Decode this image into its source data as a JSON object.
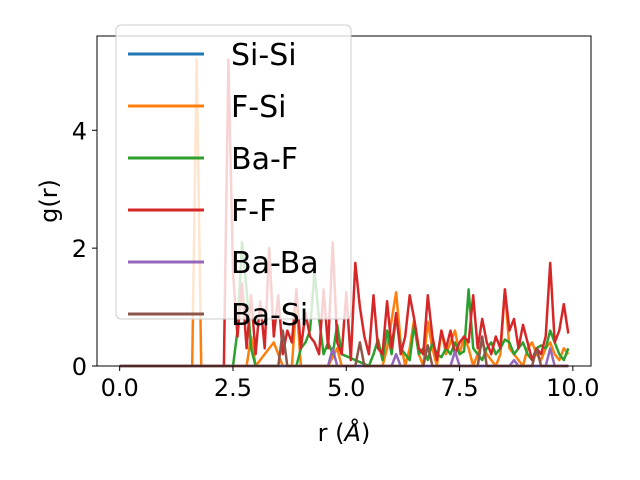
{
  "chart_data": {
    "type": "line",
    "xlabel": "r (",
    "xlabel_unit": "Å",
    "xlabel_close": ")",
    "ylabel": "g(r)",
    "xlim": [
      -0.5,
      10.4
    ],
    "ylim": [
      0,
      5.6
    ],
    "xticks": [
      0.0,
      2.5,
      5.0,
      7.5,
      10.0
    ],
    "xtick_labels": [
      "0.0",
      "2.5",
      "5.0",
      "7.5",
      "10.0"
    ],
    "yticks": [
      0,
      2,
      4
    ],
    "ytick_labels": [
      "0",
      "2",
      "4"
    ],
    "grid": false,
    "legend_position": "upper-left",
    "series": [
      {
        "name": "Si-Si",
        "color": "#1f77b4",
        "x": [
          0.0,
          5.0,
          9.9
        ],
        "y": [
          0,
          0,
          0
        ]
      },
      {
        "name": "F-Si",
        "color": "#ff7f0e",
        "x": [
          0.0,
          1.6,
          1.7,
          1.8,
          2.8,
          2.9,
          3.0,
          3.4,
          3.6,
          3.8,
          3.9,
          4.0,
          4.6,
          4.8,
          4.9,
          5.0,
          5.8,
          5.9,
          6.1,
          6.2,
          6.3,
          6.4,
          6.5,
          6.6,
          6.7,
          6.8,
          6.9,
          7.0,
          7.1,
          7.2,
          7.3,
          7.4,
          7.5,
          7.6,
          7.7,
          7.8,
          7.9,
          8.0,
          8.1,
          8.2,
          8.3,
          8.4,
          8.5,
          8.6,
          8.7,
          8.8,
          8.9,
          9.0,
          9.1,
          9.2,
          9.3,
          9.4,
          9.5,
          9.6,
          9.7,
          9.8,
          9.9
        ],
        "y": [
          0,
          0,
          5.2,
          0,
          0,
          0.5,
          0,
          0.4,
          0,
          0,
          1.1,
          0,
          0,
          0.3,
          0,
          0,
          0,
          0.3,
          1.25,
          0.4,
          0,
          0.3,
          0.8,
          0.2,
          0,
          0.75,
          0.3,
          0,
          0.6,
          0.2,
          0.4,
          0.6,
          0.2,
          0.5,
          0.3,
          0,
          0.2,
          0.4,
          0.2,
          0.1,
          0,
          0.2,
          1.3,
          0.3,
          0.2,
          0.1,
          0,
          0.3,
          0.4,
          0.2,
          0.1,
          0.3,
          0.4,
          0.2,
          0.1,
          0.3,
          0.2
        ]
      },
      {
        "name": "Ba-F",
        "color": "#2ca02c",
        "x": [
          0.0,
          2.5,
          2.6,
          2.7,
          2.8,
          2.9,
          3.0,
          3.9,
          4.0,
          4.1,
          4.2,
          4.3,
          4.4,
          4.5,
          4.6,
          4.7,
          4.8,
          4.9,
          5.5,
          5.6,
          5.7,
          5.8,
          5.9,
          6.0,
          6.1,
          6.2,
          6.3,
          6.4,
          6.5,
          6.6,
          6.7,
          6.8,
          6.9,
          7.0,
          7.1,
          7.2,
          7.3,
          7.4,
          7.5,
          7.6,
          7.7,
          7.8,
          7.9,
          8.0,
          8.1,
          8.2,
          8.3,
          8.4,
          8.5,
          8.6,
          8.7,
          8.8,
          8.9,
          9.0,
          9.1,
          9.2,
          9.3,
          9.4,
          9.5,
          9.6,
          9.7,
          9.8,
          9.9
        ],
        "y": [
          0,
          0,
          0.6,
          2.1,
          1.3,
          0.3,
          0,
          0,
          0.3,
          0.4,
          0.6,
          1.6,
          0.8,
          0.2,
          0.4,
          0.2,
          0.7,
          0.2,
          0,
          0.2,
          0.45,
          0.1,
          0.6,
          0.2,
          0.85,
          0.3,
          0.2,
          0.1,
          0.7,
          0.2,
          0.3,
          0.1,
          0.4,
          0.2,
          0.15,
          0.3,
          0.2,
          0.4,
          0.2,
          0.25,
          1.3,
          0.3,
          0.2,
          0.1,
          0.3,
          0.4,
          0.2,
          0.3,
          0.45,
          0.4,
          0.2,
          0.3,
          0.4,
          0.2,
          0.1,
          0.3,
          0.35,
          0.3,
          0.6,
          0.4,
          0.2,
          0.1,
          0.3
        ]
      },
      {
        "name": "F-F",
        "color": "#d62728",
        "x": [
          0.0,
          2.3,
          2.4,
          2.5,
          2.6,
          2.7,
          2.8,
          2.9,
          3.0,
          3.1,
          3.2,
          3.3,
          3.4,
          3.5,
          3.6,
          3.7,
          3.8,
          3.9,
          4.0,
          4.1,
          4.2,
          4.3,
          4.4,
          4.5,
          4.6,
          4.7,
          4.8,
          4.9,
          5.0,
          5.1,
          5.2,
          5.3,
          5.4,
          5.5,
          5.6,
          5.7,
          5.8,
          5.9,
          6.0,
          6.1,
          6.2,
          6.3,
          6.4,
          6.5,
          6.6,
          6.7,
          6.8,
          6.9,
          7.0,
          7.1,
          7.2,
          7.3,
          7.4,
          7.5,
          7.6,
          7.7,
          7.8,
          7.9,
          8.0,
          8.1,
          8.2,
          8.3,
          8.4,
          8.5,
          8.6,
          8.7,
          8.8,
          8.9,
          9.0,
          9.1,
          9.2,
          9.3,
          9.4,
          9.5,
          9.6,
          9.7,
          9.8,
          9.9
        ],
        "y": [
          0,
          0,
          5.2,
          1.6,
          0.5,
          1.4,
          0.3,
          1.2,
          0.2,
          1.1,
          0.3,
          2.0,
          0.5,
          1.2,
          0.2,
          0.6,
          0.4,
          1.3,
          0.3,
          0.9,
          0.5,
          0.4,
          0.2,
          1.3,
          0.3,
          2.1,
          0.4,
          0.2,
          1.25,
          0.1,
          1.75,
          1.0,
          0.5,
          0.2,
          1.2,
          0.3,
          0.2,
          1.1,
          0.3,
          0.9,
          0.2,
          0.5,
          1.2,
          0.8,
          0.3,
          0.2,
          1.2,
          0.5,
          0.1,
          0.6,
          0.3,
          0.6,
          0.2,
          0.4,
          0.5,
          0.4,
          1.2,
          0.3,
          0.8,
          0.4,
          0.2,
          0.5,
          0.3,
          1.3,
          0.6,
          0.8,
          0.3,
          0.7,
          0.4,
          0.1,
          0.3,
          0.2,
          0.5,
          1.75,
          0.4,
          0.6,
          1.05,
          0.55
        ]
      },
      {
        "name": "Ba-Ba",
        "color": "#9467bd",
        "x": [
          0.0,
          4.6,
          4.7,
          4.8,
          6.0,
          6.1,
          6.2,
          7.3,
          7.4,
          7.5,
          8.6,
          8.7,
          8.8,
          9.4,
          9.5,
          9.6,
          9.9
        ],
        "y": [
          0,
          0,
          0.3,
          0,
          0,
          0.2,
          0,
          0,
          0.25,
          0,
          0,
          0.1,
          0,
          0,
          0.3,
          0,
          0
        ]
      },
      {
        "name": "Ba-Si",
        "color": "#8c564b",
        "x": [
          0.0,
          3.5,
          3.6,
          3.7,
          5.2,
          5.3,
          5.4,
          6.7,
          6.8,
          6.9,
          7.9,
          8.0,
          8.1,
          9.1,
          9.2,
          9.3,
          9.9
        ],
        "y": [
          0,
          0,
          0.6,
          0,
          0,
          0.4,
          0,
          0,
          0.35,
          0,
          0,
          0.5,
          0,
          0,
          0.3,
          0,
          0
        ]
      }
    ]
  }
}
